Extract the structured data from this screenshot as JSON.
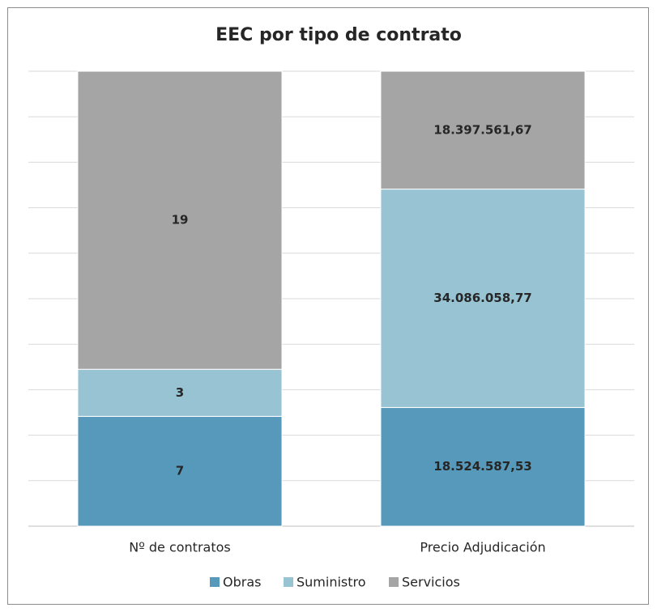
{
  "chart_data": {
    "type": "bar",
    "stacked": "percent",
    "title": "EEC por tipo de contrato",
    "categories": [
      "Nº de contratos",
      "Precio Adjudicación"
    ],
    "series": [
      {
        "name": "Obras",
        "color": "#5799bb",
        "values": [
          7,
          18524587.53
        ],
        "value_labels": [
          "7",
          "18.524.587,53"
        ]
      },
      {
        "name": "Suministro",
        "color": "#97c3d3",
        "values": [
          3,
          34086058.77
        ],
        "value_labels": [
          "3",
          "34.086.058,77"
        ]
      },
      {
        "name": "Servicios",
        "color": "#a5a5a5",
        "values": [
          19,
          18397561.67
        ],
        "value_labels": [
          "19",
          "18.397.561,67"
        ]
      }
    ],
    "ylim": [
      0,
      100
    ],
    "yticks": [
      0,
      10,
      20,
      30,
      40,
      50,
      60,
      70,
      80,
      90,
      100
    ],
    "grid": true,
    "legend": "bottom"
  }
}
